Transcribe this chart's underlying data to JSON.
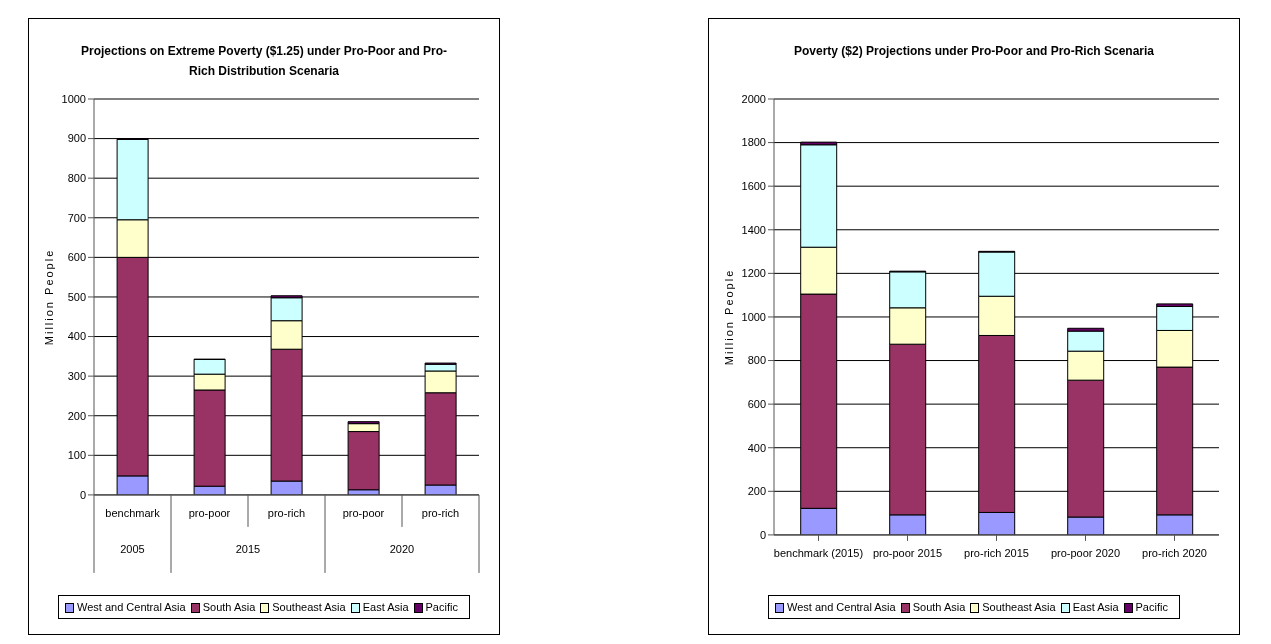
{
  "chart_data": [
    {
      "type": "bar",
      "stacked": true,
      "title": "Projections on Extreme Poverty ($1.25) under Pro-Poor and Pro-Rich Distribution Scenaria",
      "ylabel": "Million People",
      "categories": [
        "benchmark",
        "pro-poor",
        "pro-rich",
        "pro-poor",
        "pro-rich"
      ],
      "annotations": [
        "2005",
        "2015",
        "2020"
      ],
      "ylim": [
        0,
        1000
      ],
      "yticks": [
        0,
        100,
        200,
        300,
        400,
        500,
        600,
        700,
        800,
        900,
        1000
      ],
      "grid": "y",
      "legend": "bottom",
      "series": [
        {
          "name": "West and Central Asia",
          "color": "#9999ff",
          "values": [
            48,
            22,
            35,
            13,
            25
          ]
        },
        {
          "name": "South Asia",
          "color": "#993366",
          "values": [
            552,
            243,
            333,
            147,
            233
          ]
        },
        {
          "name": "Southeast Asia",
          "color": "#ffffcc",
          "values": [
            95,
            40,
            72,
            20,
            55
          ]
        },
        {
          "name": "East Asia",
          "color": "#ccffff",
          "values": [
            203,
            37,
            58,
            null,
            17
          ]
        },
        {
          "name": "Pacific",
          "color": "#660066",
          "values": [
            2,
            1,
            5,
            5,
            3
          ]
        }
      ]
    },
    {
      "type": "bar",
      "stacked": true,
      "title": "Poverty ($2) Projections under Pro-Poor and Pro-Rich Scenaria",
      "ylabel": "Million People",
      "categories": [
        "benchmark (2015)",
        "pro-poor 2015",
        "pro-rich 2015",
        "pro-poor 2020",
        "pro-rich 2020"
      ],
      "ylim": [
        0,
        2000
      ],
      "yticks": [
        0,
        200,
        400,
        600,
        800,
        1000,
        1200,
        1400,
        1600,
        1800,
        2000
      ],
      "grid": "y",
      "legend": "bottom",
      "series": [
        {
          "name": "West and Central Asia",
          "color": "#9999ff",
          "values": [
            122,
            92,
            103,
            82,
            92
          ]
        },
        {
          "name": "South Asia",
          "color": "#993366",
          "values": [
            983,
            783,
            812,
            628,
            678
          ]
        },
        {
          "name": "Southeast Asia",
          "color": "#ffffcc",
          "values": [
            215,
            167,
            180,
            133,
            168
          ]
        },
        {
          "name": "East Asia",
          "color": "#ccffff",
          "values": [
            470,
            165,
            203,
            92,
            110
          ]
        },
        {
          "name": "Pacific",
          "color": "#660066",
          "values": [
            12,
            3,
            3,
            13,
            12
          ]
        }
      ]
    }
  ]
}
